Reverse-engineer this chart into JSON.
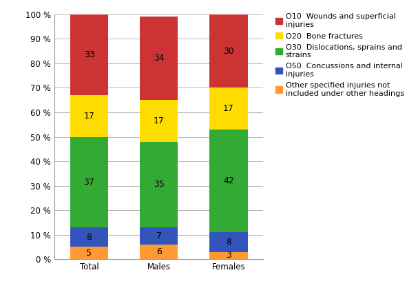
{
  "categories": [
    "Total",
    "Males",
    "Females"
  ],
  "series": [
    {
      "label": "O10  Wounds and superficial\ninjuries",
      "values": [
        33,
        34,
        30
      ],
      "color": "#CC3333"
    },
    {
      "label": "O20  Bone fractures",
      "values": [
        17,
        17,
        17
      ],
      "color": "#FFDD00"
    },
    {
      "label": "O30  Dislocations, sprains and\nstrains",
      "values": [
        37,
        35,
        42
      ],
      "color": "#33AA33"
    },
    {
      "label": "O50  Concussions and internal\ninjuries",
      "values": [
        8,
        7,
        8
      ],
      "color": "#3355BB"
    },
    {
      "label": "Other specified injuries not\nincluded under other headings",
      "values": [
        5,
        6,
        3
      ],
      "color": "#FF9933"
    }
  ],
  "ylim": [
    0,
    100
  ],
  "yticks": [
    0,
    10,
    20,
    30,
    40,
    50,
    60,
    70,
    80,
    90,
    100
  ],
  "ytick_labels": [
    "0 %",
    "10 %",
    "20 %",
    "30 %",
    "40 %",
    "50 %",
    "60 %",
    "70 %",
    "80 %",
    "90 %",
    "100 %"
  ],
  "bar_width": 0.55,
  "background_color": "#FFFFFF",
  "grid_color": "#999999",
  "label_fontsize": 9,
  "tick_fontsize": 8.5,
  "legend_fontsize": 8
}
